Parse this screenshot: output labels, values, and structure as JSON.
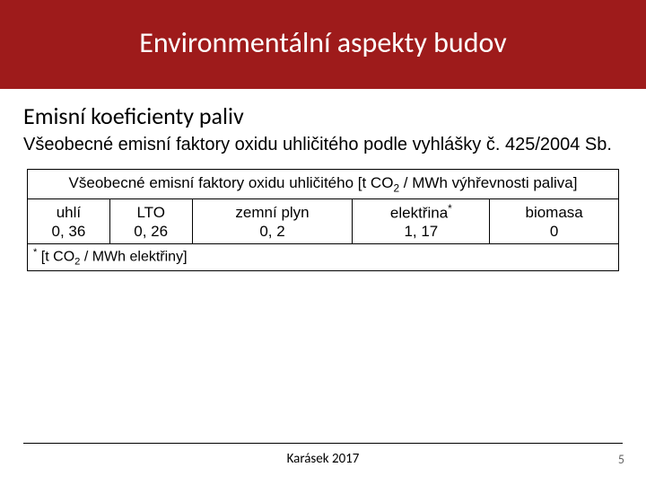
{
  "title": "Environmentální aspekty budov",
  "subheading": "Emisní koeficienty paliv",
  "description": "Všeobecné emisní faktory oxidu uhličitého podle vyhlášky č. 425/2004 Sb.",
  "table": {
    "header_pre": "Všeobecné emisní faktory oxidu uhličitého [t CO",
    "header_sub": "2",
    "header_post": " / MWh výhřevnosti paliva]",
    "columns": [
      {
        "label": "uhlí",
        "value": "0, 36"
      },
      {
        "label": "LTO",
        "value": "0, 26"
      },
      {
        "label": "zemní plyn",
        "value": "0, 2"
      },
      {
        "label_pre": "elektřina",
        "label_sup": "*",
        "value": "1, 17"
      },
      {
        "label": "biomasa",
        "value": "0"
      }
    ],
    "footnote_sup": "*",
    "footnote_pre": " [t CO",
    "footnote_sub": "2",
    "footnote_post": " / MWh elektřiny]"
  },
  "footer": {
    "center": "Karásek 2017",
    "page": "5"
  }
}
